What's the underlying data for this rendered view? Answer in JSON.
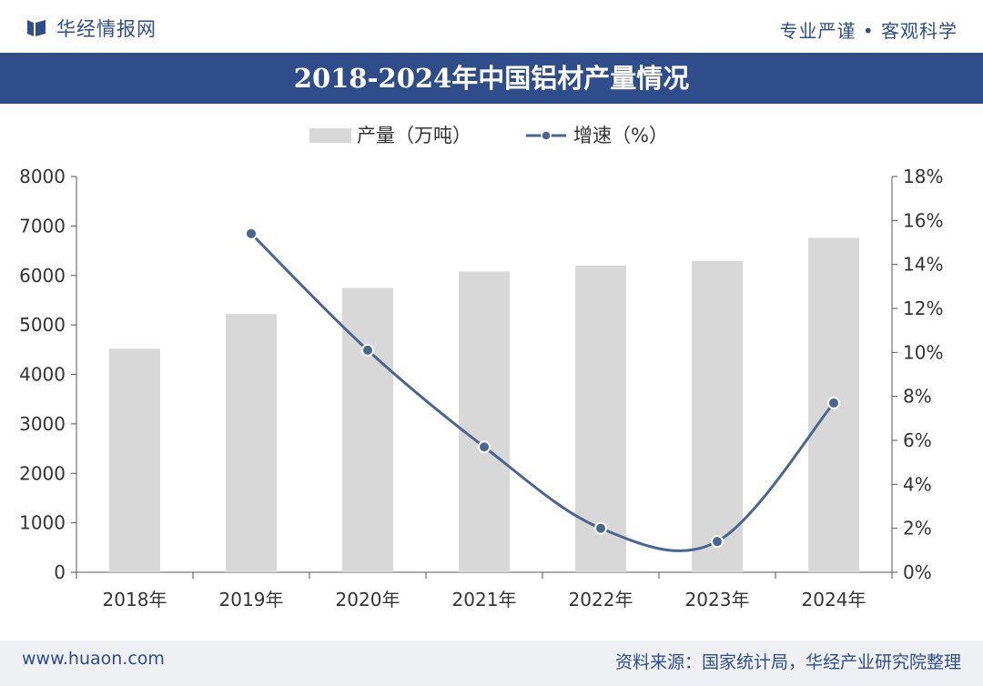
{
  "header": {
    "brand": "华经情报网",
    "slogan": "专业严谨 • 客观科学",
    "title": "2018-2024年中国铝材产量情况"
  },
  "footer": {
    "url": "www.huaon.com",
    "source": "资料来源：国家统计局，华经产业研究院整理"
  },
  "colors": {
    "brand": "#2f4d8a",
    "bar": "#d8d8d8",
    "line": "#4a6690"
  },
  "chart_data": {
    "type": "bar",
    "title": "2018-2024年中国铝材产量情况",
    "categories": [
      "2018年",
      "2019年",
      "2020年",
      "2021年",
      "2022年",
      "2023年",
      "2024年"
    ],
    "series": [
      {
        "name": "产量（万吨）",
        "type": "bar",
        "axis": "left",
        "values": [
          4520,
          5220,
          5750,
          6080,
          6200,
          6290,
          6760
        ]
      },
      {
        "name": "增速（%）",
        "type": "line",
        "axis": "right",
        "values": [
          null,
          15.4,
          10.1,
          5.7,
          2.0,
          1.4,
          7.7
        ]
      }
    ],
    "y_left": {
      "ylim": [
        0,
        8000
      ],
      "ticks": [
        "0",
        "1000",
        "2000",
        "3000",
        "4000",
        "5000",
        "6000",
        "7000",
        "8000"
      ]
    },
    "y_right": {
      "ylim": [
        0,
        18
      ],
      "ticks": [
        "0%",
        "2%",
        "4%",
        "6%",
        "8%",
        "10%",
        "12%",
        "14%",
        "16%",
        "18%"
      ]
    },
    "legend": "top-center",
    "grid": false
  }
}
